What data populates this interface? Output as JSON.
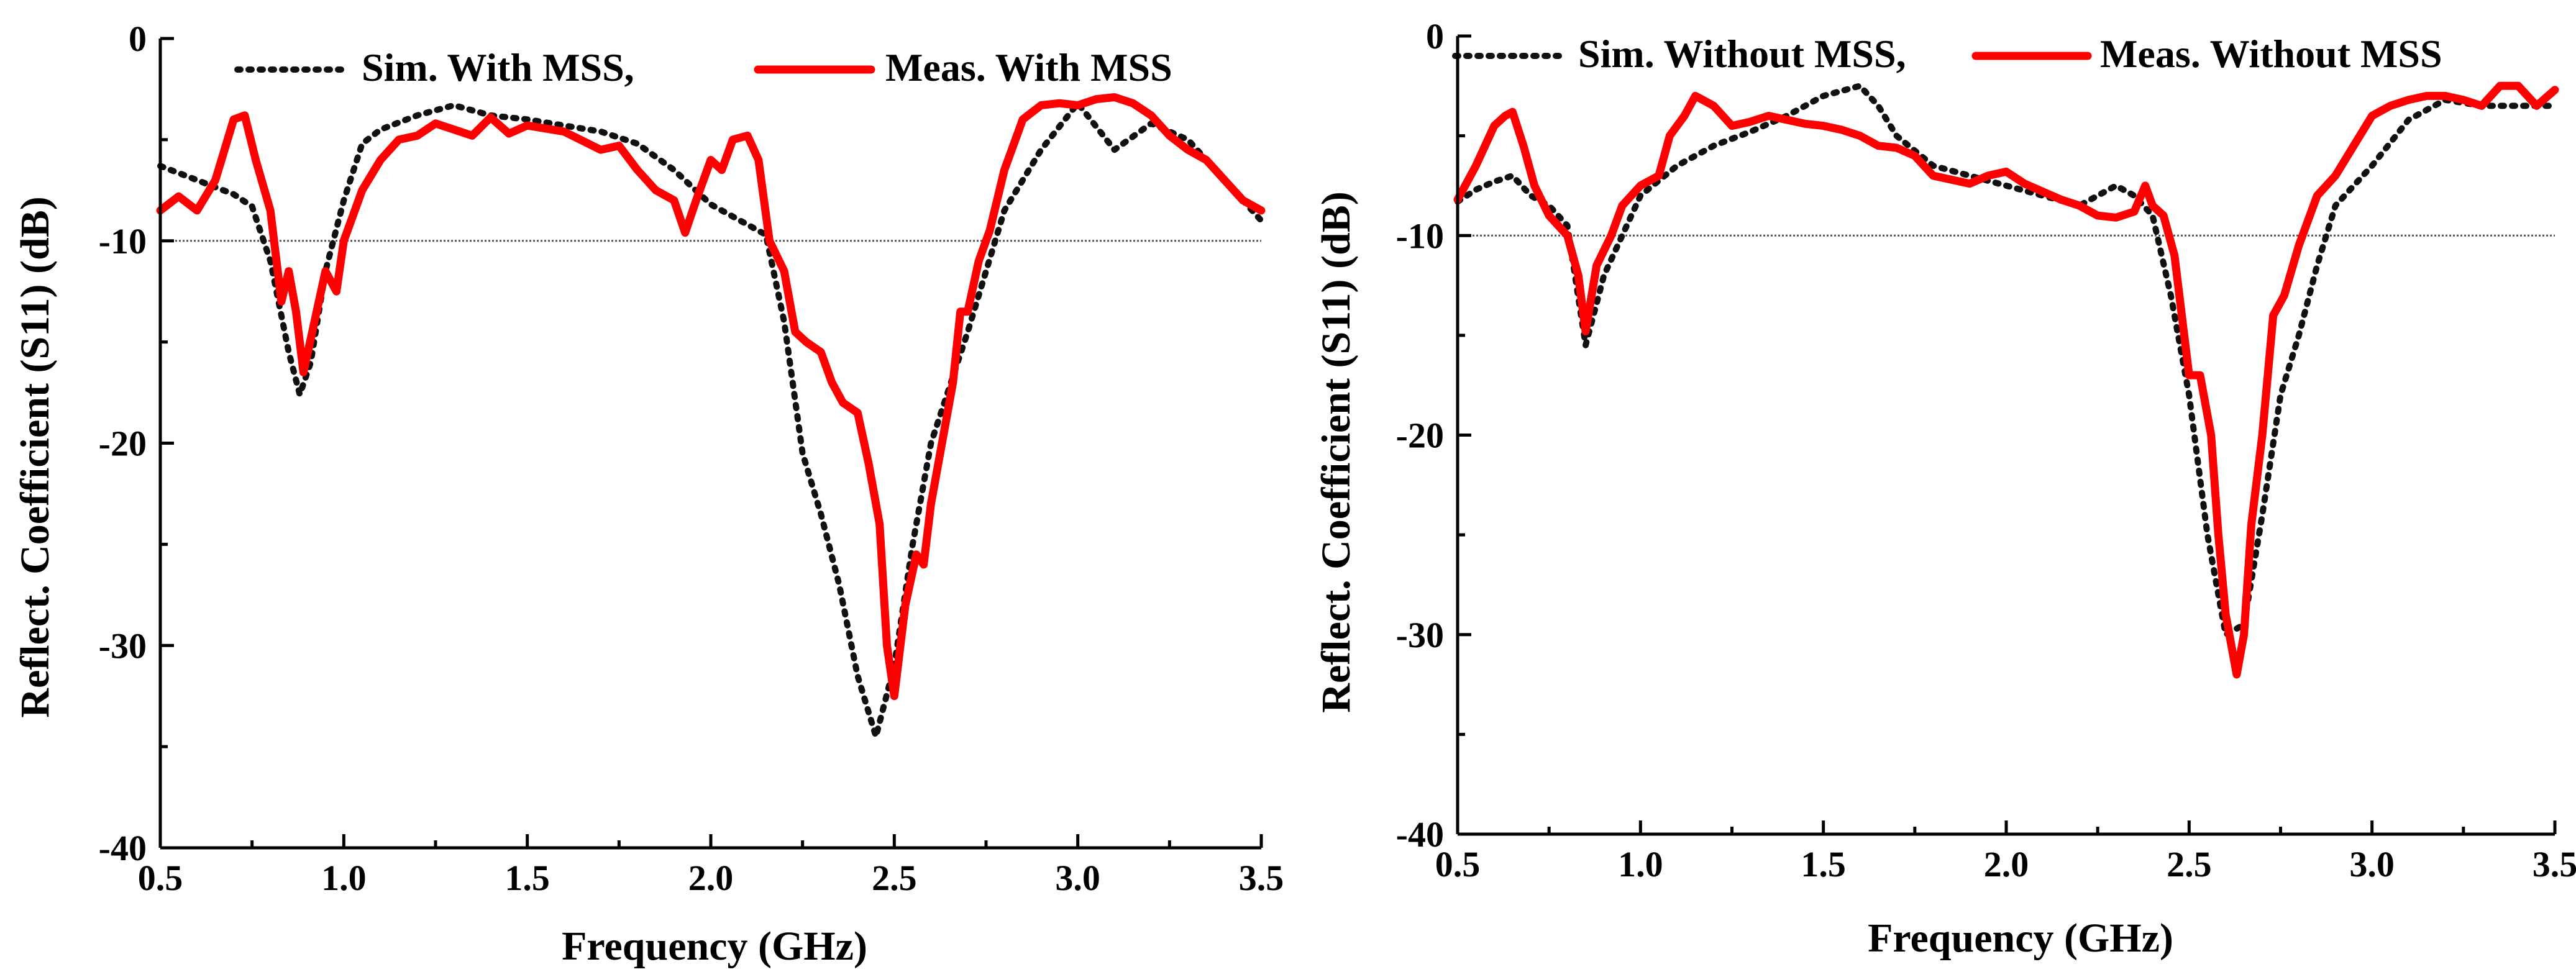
{
  "chart_data": [
    {
      "type": "line",
      "xlabel": "Frequency (GHz)",
      "ylabel": "Reflect. Coefficient (S11) (dB)",
      "xlim": [
        0.5,
        3.5
      ],
      "ylim": [
        -40,
        0
      ],
      "xticks": [
        "0.5",
        "1.0",
        "1.5",
        "2.0",
        "2.5",
        "3.0",
        "3.5"
      ],
      "yticks": [
        "0",
        "-10",
        "-20",
        "-30",
        "-40"
      ],
      "reference_level": -10,
      "legend_location": "top",
      "legend": [
        {
          "label": "Sim. With MSS,",
          "style": "dotted",
          "color": "#111111"
        },
        {
          "label": "Meas. With MSS",
          "style": "solid",
          "color": "#ff0000"
        }
      ],
      "series": [
        {
          "name": "Sim. With MSS",
          "x": [
            0.5,
            0.6,
            0.7,
            0.75,
            0.8,
            0.85,
            0.88,
            0.91,
            0.95,
            1.0,
            1.05,
            1.1,
            1.2,
            1.3,
            1.4,
            1.5,
            1.6,
            1.7,
            1.8,
            1.9,
            2.0,
            2.1,
            2.15,
            2.2,
            2.25,
            2.3,
            2.35,
            2.4,
            2.45,
            2.5,
            2.55,
            2.6,
            2.7,
            2.8,
            2.9,
            3.0,
            3.1,
            3.2,
            3.3,
            3.4,
            3.5
          ],
          "y": [
            -6.3,
            -7,
            -7.7,
            -8.3,
            -11,
            -15.5,
            -17.6,
            -16,
            -11.5,
            -8,
            -5.2,
            -4.5,
            -3.8,
            -3.3,
            -3.8,
            -4,
            -4.3,
            -4.6,
            -5.2,
            -6.5,
            -8.2,
            -9.2,
            -9.7,
            -14,
            -20.5,
            -23.5,
            -27,
            -31.5,
            -34.5,
            -31,
            -25,
            -20,
            -14.5,
            -8.5,
            -5.5,
            -3.2,
            -5.5,
            -4.2,
            -5,
            -7,
            -9
          ]
        },
        {
          "name": "Meas. With MSS",
          "x": [
            0.5,
            0.55,
            0.6,
            0.65,
            0.7,
            0.73,
            0.76,
            0.8,
            0.83,
            0.85,
            0.87,
            0.89,
            0.92,
            0.95,
            0.98,
            1.0,
            1.05,
            1.1,
            1.15,
            1.2,
            1.25,
            1.3,
            1.35,
            1.4,
            1.45,
            1.5,
            1.6,
            1.7,
            1.75,
            1.8,
            1.85,
            1.9,
            1.93,
            1.96,
            2.0,
            2.03,
            2.06,
            2.1,
            2.13,
            2.16,
            2.2,
            2.23,
            2.26,
            2.3,
            2.33,
            2.36,
            2.4,
            2.43,
            2.46,
            2.48,
            2.5,
            2.53,
            2.56,
            2.58,
            2.6,
            2.63,
            2.66,
            2.68,
            2.7,
            2.73,
            2.76,
            2.8,
            2.85,
            2.9,
            2.95,
            3.0,
            3.05,
            3.1,
            3.15,
            3.2,
            3.25,
            3.3,
            3.35,
            3.4,
            3.45,
            3.5
          ],
          "y": [
            -8.5,
            -7.8,
            -8.5,
            -7,
            -4,
            -3.8,
            -6,
            -8.5,
            -13,
            -11.5,
            -13.5,
            -16.5,
            -14,
            -11.5,
            -12.5,
            -10,
            -7.5,
            -6,
            -5,
            -4.8,
            -4.2,
            -4.5,
            -4.8,
            -3.9,
            -4.7,
            -4.3,
            -4.6,
            -5.5,
            -5.3,
            -6.5,
            -7.5,
            -8,
            -9.6,
            -8,
            -6,
            -6.5,
            -5,
            -4.8,
            -6,
            -10,
            -11.5,
            -14.5,
            -15,
            -15.5,
            -17,
            -18,
            -18.5,
            -21,
            -24,
            -30,
            -32.5,
            -28,
            -25.5,
            -26,
            -23,
            -20,
            -17,
            -13.5,
            -13.5,
            -11,
            -9.5,
            -6.5,
            -4,
            -3.3,
            -3.2,
            -3.3,
            -3,
            -2.9,
            -3.2,
            -3.8,
            -4.8,
            -5.5,
            -6,
            -7,
            -8,
            -8.5
          ]
        }
      ]
    },
    {
      "type": "line",
      "xlabel": "Frequency (GHz)",
      "ylabel": "Reflect. Coefficient (S11) (dB)",
      "xlim": [
        0.5,
        3.5
      ],
      "ylim": [
        -40,
        0
      ],
      "xticks": [
        "0.5",
        "1.0",
        "1.5",
        "2.0",
        "2.5",
        "3.0",
        "3.5"
      ],
      "yticks": [
        "0",
        "-10",
        "-20",
        "-30",
        "-40"
      ],
      "reference_level": -10,
      "legend_location": "top",
      "legend": [
        {
          "label": "Sim. Without MSS,",
          "style": "dotted",
          "color": "#111111"
        },
        {
          "label": "Meas. Without MSS",
          "style": "solid",
          "color": "#ff0000"
        }
      ],
      "series": [
        {
          "name": "Sim. Without MSS",
          "x": [
            0.5,
            0.55,
            0.6,
            0.65,
            0.7,
            0.75,
            0.8,
            0.85,
            0.9,
            0.95,
            1.0,
            1.1,
            1.2,
            1.3,
            1.4,
            1.5,
            1.6,
            1.65,
            1.7,
            1.8,
            1.9,
            2.0,
            2.1,
            2.2,
            2.3,
            2.35,
            2.4,
            2.45,
            2.5,
            2.55,
            2.6,
            2.65,
            2.7,
            2.75,
            2.8,
            2.85,
            2.9,
            3.0,
            3.1,
            3.2,
            3.3,
            3.4,
            3.5
          ],
          "y": [
            -8.3,
            -7.7,
            -7.3,
            -7,
            -8,
            -8.5,
            -9.5,
            -15.5,
            -12,
            -10,
            -8,
            -6.5,
            -5.5,
            -4.8,
            -4,
            -3,
            -2.5,
            -3.5,
            -5,
            -6.5,
            -7,
            -7.5,
            -8,
            -8.5,
            -7.5,
            -8,
            -9,
            -13,
            -18,
            -25,
            -30,
            -29.5,
            -24,
            -18,
            -15,
            -11.5,
            -8.5,
            -6.5,
            -4.2,
            -3.2,
            -3.5,
            -3.5,
            -3.5
          ]
        },
        {
          "name": "Meas. Without MSS",
          "x": [
            0.5,
            0.55,
            0.6,
            0.63,
            0.65,
            0.68,
            0.71,
            0.75,
            0.8,
            0.83,
            0.85,
            0.88,
            0.92,
            0.95,
            1.0,
            1.05,
            1.08,
            1.12,
            1.15,
            1.2,
            1.25,
            1.3,
            1.35,
            1.4,
            1.45,
            1.5,
            1.55,
            1.6,
            1.65,
            1.7,
            1.75,
            1.8,
            1.85,
            1.9,
            1.95,
            2.0,
            2.05,
            2.1,
            2.15,
            2.2,
            2.25,
            2.3,
            2.35,
            2.38,
            2.4,
            2.43,
            2.46,
            2.5,
            2.53,
            2.56,
            2.58,
            2.6,
            2.63,
            2.65,
            2.67,
            2.7,
            2.73,
            2.76,
            2.8,
            2.85,
            2.9,
            2.95,
            3.0,
            3.05,
            3.1,
            3.15,
            3.2,
            3.25,
            3.3,
            3.35,
            3.4,
            3.45,
            3.5
          ],
          "y": [
            -8.2,
            -6.5,
            -4.5,
            -4,
            -3.8,
            -5.5,
            -7.5,
            -9,
            -10,
            -12,
            -14.8,
            -11.5,
            -10,
            -8.5,
            -7.5,
            -7,
            -5,
            -4,
            -3,
            -3.5,
            -4.5,
            -4.3,
            -4,
            -4.2,
            -4.4,
            -4.5,
            -4.7,
            -5,
            -5.5,
            -5.6,
            -6,
            -7,
            -7.2,
            -7.4,
            -7,
            -6.8,
            -7.4,
            -7.8,
            -8.2,
            -8.5,
            -9,
            -9.1,
            -8.8,
            -7.5,
            -8.5,
            -9,
            -11,
            -17,
            -17,
            -20,
            -25,
            -29,
            -32,
            -30,
            -24.5,
            -20,
            -14,
            -13,
            -10.5,
            -8,
            -7,
            -5.5,
            -4,
            -3.5,
            -3.2,
            -3,
            -3,
            -3.2,
            -3.5,
            -2.5,
            -2.5,
            -3.5,
            -2.7
          ]
        }
      ]
    }
  ]
}
